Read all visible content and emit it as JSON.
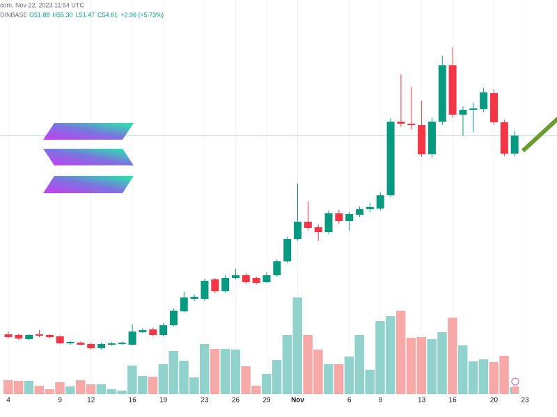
{
  "chart_data": {
    "type": "candlestick",
    "header_source": "com, Nov 22, 2023 11:54 UTC",
    "header_exchange": "DINBASE",
    "header_ohlc": [
      "O51.88",
      "H55.30",
      "L51.47",
      "C54.61",
      "+2.96 (+5.73%)"
    ],
    "categories": [
      "4",
      null,
      null,
      null,
      null,
      "9",
      null,
      null,
      "12",
      null,
      null,
      null,
      "16",
      null,
      null,
      "19",
      null,
      null,
      null,
      "23",
      null,
      null,
      "26",
      null,
      null,
      "29",
      null,
      null,
      "Nov",
      null,
      null,
      null,
      null,
      "6",
      null,
      null,
      "9",
      null,
      null,
      null,
      "13",
      null,
      null,
      "16",
      null,
      null,
      null,
      "20",
      null,
      null,
      "23"
    ],
    "open": [
      24.58,
      24.48,
      23.85,
      24.58,
      24.48,
      24.27,
      23.22,
      23.33,
      23.12,
      22.49,
      23.01,
      23.12,
      23.01,
      24.9,
      25.32,
      24.48,
      25.95,
      28.05,
      29.94,
      29.94,
      32.88,
      31.09,
      33.09,
      33.51,
      33.09,
      32.46,
      33.51,
      35.61,
      38.97,
      41.6,
      40.76,
      40.02,
      42.86,
      41.7,
      42.65,
      43.49,
      43.59,
      45.59,
      56.71,
      56.4,
      56.19,
      51.78,
      56.71,
      65.22,
      57.77,
      58.5,
      58.61,
      61.02,
      56.61,
      51.88,
      null
    ],
    "high": [
      25.0,
      24.69,
      24.6,
      25.22,
      24.6,
      24.4,
      23.6,
      23.5,
      23.3,
      23.3,
      23.4,
      23.5,
      26.06,
      25.5,
      25.6,
      26.3,
      28.5,
      31.0,
      30.6,
      33.0,
      33.1,
      33.5,
      34.46,
      33.8,
      33.3,
      34.0,
      35.9,
      39.3,
      47.37,
      44.64,
      41.2,
      43.3,
      43.4,
      43.1,
      43.9,
      44.4,
      46.0,
      57.24,
      63.86,
      61.97,
      59.86,
      57.3,
      66.69,
      67.95,
      59.0,
      59.6,
      61.86,
      61.6,
      57.0,
      55.3,
      null
    ],
    "low": [
      23.96,
      23.74,
      23.7,
      24.17,
      24.0,
      23.1,
      23.0,
      22.9,
      22.3,
      22.3,
      22.9,
      23.0,
      22.9,
      24.8,
      24.3,
      24.3,
      25.8,
      27.9,
      29.6,
      29.6,
      30.8,
      30.9,
      32.9,
      32.2,
      32.1,
      32.3,
      33.3,
      35.4,
      38.7,
      40.3,
      38.66,
      39.7,
      41.3,
      40.23,
      42.3,
      43.0,
      43.3,
      45.3,
      55.9,
      55.5,
      51.4,
      51.2,
      56.2,
      57.3,
      54.61,
      55.14,
      58.2,
      56.2,
      51.5,
      51.47,
      null
    ],
    "close": [
      24.17,
      23.96,
      24.48,
      24.38,
      24.17,
      23.22,
      23.43,
      23.01,
      22.49,
      23.12,
      23.22,
      23.33,
      25.0,
      25.22,
      24.48,
      25.95,
      28.16,
      30.15,
      30.26,
      32.67,
      31.09,
      33.09,
      33.51,
      32.46,
      32.36,
      33.51,
      35.61,
      38.97,
      41.6,
      40.65,
      40.02,
      42.86,
      41.7,
      42.75,
      43.49,
      43.8,
      45.59,
      56.71,
      56.4,
      56.19,
      51.78,
      56.71,
      65.22,
      57.77,
      58.5,
      58.71,
      61.14,
      56.61,
      51.88,
      54.61,
      null
    ],
    "volume": [
      20,
      19,
      19,
      12,
      7,
      17,
      11,
      20,
      14,
      14,
      7,
      5,
      41,
      26,
      25,
      43,
      62,
      48,
      24,
      72,
      65,
      65,
      64,
      40,
      12,
      29,
      49,
      85,
      139,
      85,
      64,
      43,
      43,
      54,
      85,
      35,
      105,
      112,
      120,
      81,
      82,
      79,
      89,
      110,
      70,
      47,
      50,
      46,
      55,
      10,
      null
    ],
    "up_color": "#089981",
    "down_color": "#f23645",
    "up_volume_color": "#92d2cc",
    "down_volume_color": "#f7a9a7",
    "ylim": [
      12.09,
      75.09
    ],
    "volume_ylim": [
      0,
      140
    ],
    "grid": true
  }
}
